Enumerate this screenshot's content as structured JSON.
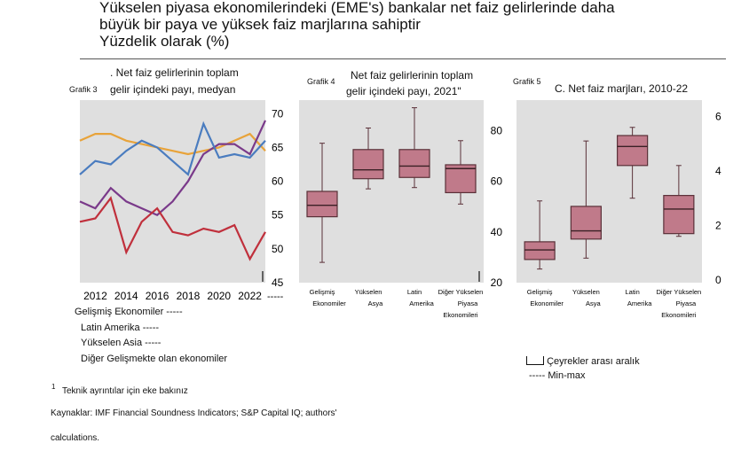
{
  "header": {
    "line1": "Yükselen piyasa ekonomilerindeki (EME's)  bankalar net faiz gelirlerinde daha",
    "line2": "büyük bir paya ve yüksek faiz marjlarına sahiptir",
    "line3": "Yüzdelik olarak (%)"
  },
  "panel3": {
    "label": "Grafik 3",
    "title1": ". Net faiz gelirlerinin toplam",
    "title2": "gelir içindeki payı, medyan"
  },
  "panel4": {
    "label": "Grafik 4",
    "title1": "Net faiz gelirlerinin toplam",
    "title2": "gelir içindeki payı, 2021\""
  },
  "panel5": {
    "label": "Grafik 5",
    "title1": "C. Net faiz marjları, 2010-22"
  },
  "legend": {
    "ae": "Gelişmiş Ekonomiler -----",
    "latam": "Latin Amerika -----",
    "asia": "Yükselen Asia -----",
    "other": "Diğer Gelişmekte olan ekonomiler",
    "iqr": "Çeyrekler arası aralık",
    "minmax": "----- Min-max"
  },
  "footnotes": {
    "note": "Teknik ayrıntılar için eke bakınız",
    "note_mark": "1",
    "sources": "Kaynaklar: IMF Financial Soundness Indicators; S&P Capital IQ; authors'",
    "sources2": "calculations."
  },
  "colors": {
    "ae": "#e8a33a",
    "latam": "#7a3a8a",
    "asia": "#4a7cbf",
    "other": "#c0303c",
    "box": "#c07a8a",
    "box_edge": "#5a3038"
  },
  "chart_data": [
    {
      "type": "line",
      "x": [
        2011,
        2012,
        2013,
        2014,
        2015,
        2016,
        2017,
        2018,
        2019,
        2020,
        2021,
        2022,
        2023
      ],
      "xticks": [
        "2012",
        "2014",
        "2016",
        "2018",
        "2020",
        "2022"
      ],
      "xtick_suffix": "-----",
      "ylim": [
        45,
        72
      ],
      "yticks": [
        45,
        50,
        55,
        60,
        65,
        70
      ],
      "series": [
        {
          "name": "Gelişmiş Ekonomiler",
          "color": "#e8a33a",
          "values": [
            66,
            67,
            67,
            66,
            65.5,
            65,
            64.5,
            64,
            64.5,
            65,
            66,
            67,
            64.5
          ]
        },
        {
          "name": "Latin Amerika",
          "color": "#7a3a8a",
          "values": [
            57,
            56,
            59,
            57,
            56,
            55,
            57,
            60,
            64,
            65.5,
            65.5,
            64,
            69
          ]
        },
        {
          "name": "Yükselen Asia",
          "color": "#4a7cbf",
          "values": [
            61,
            63,
            62.5,
            64.5,
            66,
            65,
            63,
            61,
            68.5,
            63.5,
            64,
            63.5,
            66
          ]
        },
        {
          "name": "Diğer Gelişmekte olan ekonomiler",
          "color": "#c0303c",
          "values": [
            54,
            54.5,
            57.5,
            49.5,
            54,
            56,
            52.5,
            52,
            53,
            52.5,
            53.5,
            48.5,
            52.5
          ]
        }
      ]
    },
    {
      "type": "box",
      "categories": [
        "Gelişmiş Ekonomiler",
        "Yükselen Asya",
        "Latin Amerika",
        "Diğer Yükselen Piyasa Ekonomileri"
      ],
      "ylim": [
        20,
        92
      ],
      "yticks": [
        20,
        40,
        60,
        80
      ],
      "boxes": [
        {
          "min": 28,
          "q1": 46,
          "median": 50.5,
          "q3": 56,
          "max": 75
        },
        {
          "min": 57,
          "q1": 61,
          "median": 64.5,
          "q3": 72.5,
          "max": 81
        },
        {
          "min": 57.5,
          "q1": 61.5,
          "median": 66,
          "q3": 72.5,
          "max": 89
        },
        {
          "min": 51,
          "q1": 55.5,
          "median": 65,
          "q3": 66.5,
          "max": 76
        }
      ]
    },
    {
      "type": "box",
      "categories": [
        "Gelişmiş Ekonomiler",
        "Yükselen Asya",
        "Latin Amerika",
        "Diğer Yükselen Piyasa Ekonomileri"
      ],
      "ylim": [
        -0.1,
        6.6
      ],
      "yticks": [
        0,
        2,
        4,
        6
      ],
      "boxes": [
        {
          "min": 0.4,
          "q1": 0.75,
          "median": 1.1,
          "q3": 1.4,
          "max": 2.9
        },
        {
          "min": 0.8,
          "q1": 1.5,
          "median": 1.8,
          "q3": 2.7,
          "max": 5.1
        },
        {
          "min": 3.0,
          "q1": 4.2,
          "median": 4.9,
          "q3": 5.3,
          "max": 5.6
        },
        {
          "min": 1.6,
          "q1": 1.7,
          "median": 2.6,
          "q3": 3.1,
          "max": 4.2
        }
      ]
    }
  ]
}
